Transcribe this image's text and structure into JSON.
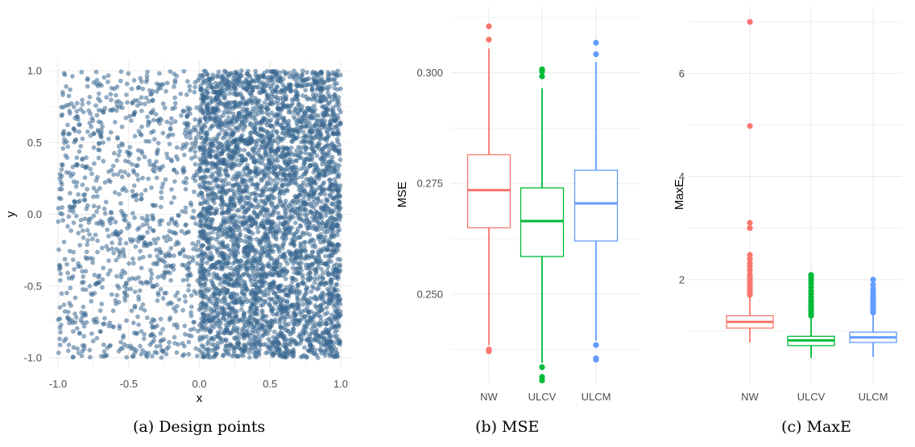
{
  "captions": {
    "a": "(a) Design points",
    "b": "(b) MSE",
    "c": "(c) MaxE"
  },
  "colors": {
    "scatter_point": "#3b6a93",
    "NW": "#f8766d",
    "ULCV": "#00ba38",
    "ULCM": "#619cff",
    "grid": "#ebebeb"
  },
  "chart_data": [
    {
      "type": "scatter",
      "title": "",
      "xlabel": "x",
      "ylabel": "y",
      "xlim": [
        -1.0,
        1.0
      ],
      "ylim": [
        -1.0,
        1.0
      ],
      "xticks": [
        -1.0,
        -0.5,
        0.0,
        0.5,
        1.0
      ],
      "xtick_labels": [
        "-1.0",
        "-0.5",
        "0.0",
        "0.5",
        "1.0"
      ],
      "yticks": [
        -1.0,
        -0.5,
        0.0,
        0.5,
        1.0
      ],
      "ytick_labels": [
        "-1.0",
        "-0.5",
        "0.0",
        "0.5",
        "1.0"
      ],
      "grid": true,
      "point_alpha": 0.55,
      "density": [
        {
          "x_range": [
            -1.0,
            0.0
          ],
          "y_range": [
            -1.0,
            1.0
          ],
          "approx_points": 1000
        },
        {
          "x_range": [
            0.0,
            1.0
          ],
          "y_range": [
            -1.0,
            1.0
          ],
          "approx_points": 4000
        }
      ]
    },
    {
      "type": "box",
      "xlabel": "",
      "ylabel": "MSE",
      "ylim": [
        0.23,
        0.315
      ],
      "yticks": [
        0.25,
        0.275,
        0.3
      ],
      "ytick_labels": [
        "0.250",
        "0.275",
        "0.300"
      ],
      "grid": true,
      "categories": [
        "NW",
        "ULCV",
        "ULCM"
      ],
      "boxes": [
        {
          "name": "NW",
          "whisker_low": 0.2385,
          "q1": 0.265,
          "median": 0.2735,
          "q3": 0.2815,
          "whisker_high": 0.3055,
          "outliers": [
            0.2371,
            0.2375,
            0.3075,
            0.3105
          ]
        },
        {
          "name": "ULCV",
          "whisker_low": 0.2345,
          "q1": 0.2585,
          "median": 0.2665,
          "q3": 0.274,
          "whisker_high": 0.2965,
          "outliers": [
            0.2335,
            0.2313,
            0.2305,
            0.2992,
            0.3003,
            0.3008
          ]
        },
        {
          "name": "ULCM",
          "whisker_low": 0.2395,
          "q1": 0.262,
          "median": 0.2705,
          "q3": 0.278,
          "whisker_high": 0.3025,
          "outliers": [
            0.2385,
            0.2355,
            0.2352,
            0.3042,
            0.3068
          ]
        }
      ]
    },
    {
      "type": "box",
      "xlabel": "",
      "ylabel": "MaxE",
      "ylim": [
        0.0,
        7.3
      ],
      "yticks": [
        2,
        4,
        6
      ],
      "ytick_labels": [
        "2",
        "4",
        "6"
      ],
      "grid": true,
      "categories": [
        "NW",
        "ULCV",
        "ULCM"
      ],
      "boxes": [
        {
          "name": "NW",
          "whisker_low": 0.78,
          "q1": 1.06,
          "median": 1.18,
          "q3": 1.3,
          "whisker_high": 1.66,
          "outliers": [
            1.7,
            1.74,
            1.78,
            1.82,
            1.86,
            1.9,
            1.95,
            2.0,
            2.05,
            2.1,
            2.18,
            2.25,
            2.32,
            2.4,
            2.48,
            3.0,
            3.1,
            4.98,
            7.0
          ]
        },
        {
          "name": "ULCV",
          "whisker_low": 0.48,
          "q1": 0.72,
          "median": 0.82,
          "q3": 0.9,
          "whisker_high": 1.26,
          "outliers": [
            1.3,
            1.34,
            1.38,
            1.42,
            1.46,
            1.5,
            1.55,
            1.6,
            1.66,
            1.72,
            1.78,
            1.85,
            1.92,
            1.98,
            2.02,
            2.06,
            2.09
          ]
        },
        {
          "name": "ULCM",
          "whisker_low": 0.5,
          "q1": 0.78,
          "median": 0.88,
          "q3": 0.98,
          "whisker_high": 1.32,
          "outliers": [
            1.36,
            1.4,
            1.44,
            1.48,
            1.52,
            1.56,
            1.6,
            1.65,
            1.7,
            1.75,
            1.82,
            1.9,
            2.0
          ]
        }
      ]
    }
  ]
}
